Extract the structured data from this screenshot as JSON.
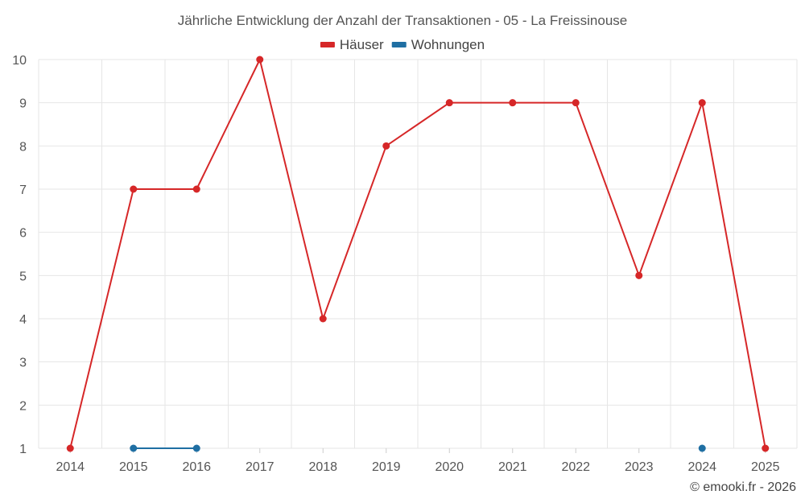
{
  "chart_data": {
    "type": "line",
    "title": "Jährliche Entwicklung der Anzahl der Transaktionen - 05 - La Freissinouse",
    "categories": [
      "2014",
      "2015",
      "2016",
      "2017",
      "2018",
      "2019",
      "2020",
      "2021",
      "2022",
      "2023",
      "2024",
      "2025"
    ],
    "ylim": [
      1,
      10
    ],
    "yticks": [
      1,
      2,
      3,
      4,
      5,
      6,
      7,
      8,
      9,
      10
    ],
    "series": [
      {
        "name": "Häuser",
        "color": "#d62728",
        "values": [
          1,
          7,
          7,
          10,
          4,
          8,
          9,
          9,
          9,
          5,
          9,
          1
        ]
      },
      {
        "name": "Wohnungen",
        "color": "#1f6fa3",
        "values": [
          null,
          1,
          1,
          null,
          null,
          null,
          null,
          null,
          null,
          null,
          1,
          null
        ]
      }
    ],
    "grid": true,
    "legend": "top-center"
  },
  "credit": "© emooki.fr - 2026"
}
